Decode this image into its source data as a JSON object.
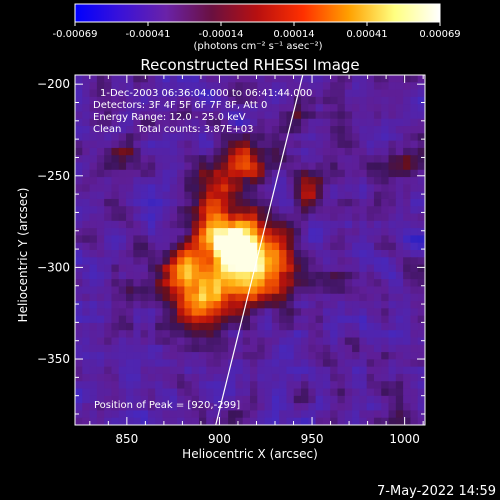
{
  "colorbar": {
    "ticks": [
      "-0.00069",
      "-0.00041",
      "-0.00014",
      "0.00014",
      "0.00041",
      "0.00069"
    ],
    "unit_label": "(photons cm⁻² s⁻¹ asec⁻²)",
    "colors": [
      "#0000ff",
      "#3a12d8",
      "#6a22a8",
      "#6a1040",
      "#b81010",
      "#ff3000",
      "#ffa000",
      "#ffff80",
      "#ffffff"
    ]
  },
  "chart_data": {
    "type": "heatmap",
    "title": "Reconstructed RHESSI Image",
    "xlabel": "Heliocentric X (arcsec)",
    "ylabel": "Heliocentric Y (arcsec)",
    "xlim": [
      822,
      1011
    ],
    "ylim": [
      -386,
      -195
    ],
    "xticks": [
      850,
      900,
      950,
      1000
    ],
    "yticks": [
      -200,
      -250,
      -300,
      -350
    ],
    "xtick_labels": [
      "850",
      "900",
      "950",
      "1000"
    ],
    "ytick_labels": [
      "−200",
      "−250",
      "−300",
      "−350"
    ],
    "clim": [
      -0.00069,
      0.00069
    ],
    "peak": [
      920,
      -299
    ],
    "limb_line": [
      [
        898,
        -386
      ],
      [
        945,
        -195
      ]
    ],
    "info_lines": [
      "1-Dec-2003 06:36:04.000 to 06:41:44.000",
      "Detectors: 3F 4F 5F 6F 7F 8F, Att 0",
      "Energy Range: 12.0 - 25.0 keV",
      "Clean     Total counts: 3.87E+03"
    ],
    "peak_label": "Position of Peak = [920,-299]"
  },
  "footer": {
    "timestamp": "7-May-2022 14:59"
  }
}
